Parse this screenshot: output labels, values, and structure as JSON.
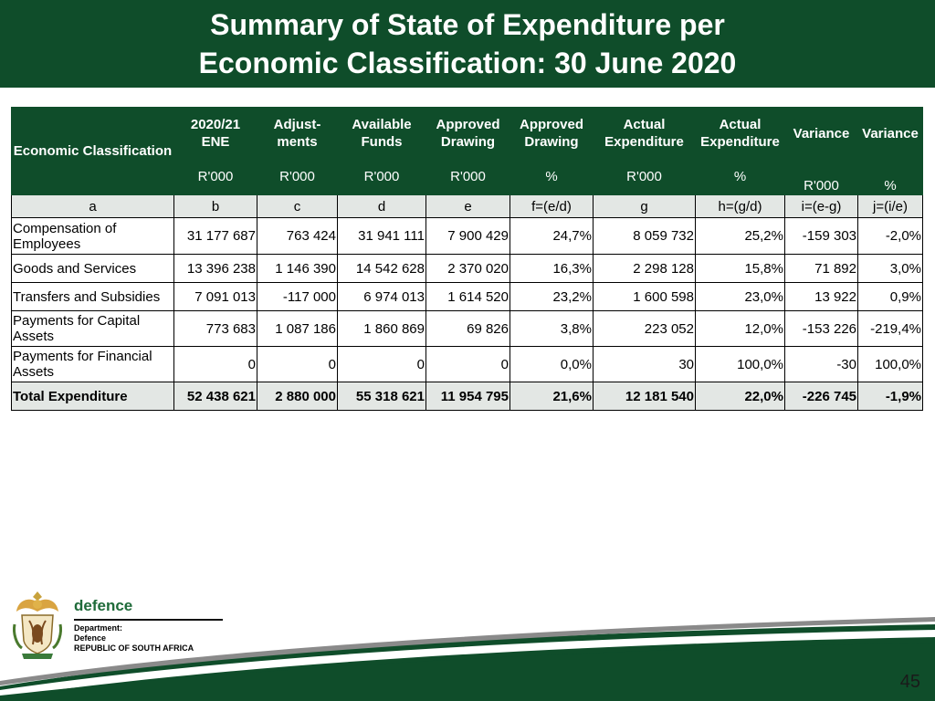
{
  "title": {
    "line1": "Summary of State of Expenditure per",
    "line2": "Economic Classification:  30 June 2020"
  },
  "table": {
    "headers": [
      {
        "label": "Economic Classification",
        "unit": ""
      },
      {
        "label": "2020/21 ENE",
        "unit": "R'000"
      },
      {
        "label": "Adjust-ments",
        "unit": "R'000"
      },
      {
        "label": "Available Funds",
        "unit": "R'000"
      },
      {
        "label": "Approved Drawing",
        "unit": "R'000"
      },
      {
        "label": "Approved Drawing",
        "unit": "%"
      },
      {
        "label": "Actual Expenditure",
        "unit": "R'000"
      },
      {
        "label": "Actual Expenditure",
        "unit": "%"
      },
      {
        "label": "Variance",
        "unit": "R'000"
      },
      {
        "label": "Variance",
        "unit": "%"
      }
    ],
    "codes": [
      "a",
      "b",
      "c",
      "d",
      "e",
      "f=(e/d)",
      "g",
      "h=(g/d)",
      "i=(e-g)",
      "j=(i/e)"
    ],
    "rows": [
      [
        "Compensation of Employees",
        "31 177 687",
        "763 424",
        "31 941 111",
        "7 900 429",
        "24,7%",
        "8 059 732",
        "25,2%",
        "-159 303",
        "-2,0%"
      ],
      [
        "Goods and Services",
        "13 396 238",
        "1 146 390",
        "14 542 628",
        "2 370 020",
        "16,3%",
        "2 298 128",
        "15,8%",
        "71 892",
        "3,0%"
      ],
      [
        "Transfers and Subsidies",
        "7 091 013",
        "-117 000",
        "6 974 013",
        "1 614 520",
        "23,2%",
        "1 600 598",
        "23,0%",
        "13 922",
        "0,9%"
      ],
      [
        "Payments for Capital Assets",
        "773 683",
        "1 087 186",
        "1 860 869",
        "69 826",
        "3,8%",
        "223 052",
        "12,0%",
        "-153 226",
        "-219,4%"
      ],
      [
        "Payments for Financial Assets",
        "0",
        "0",
        "0",
        "0",
        "0,0%",
        "30",
        "100,0%",
        "-30",
        "100,0%"
      ]
    ],
    "total": [
      "Total Expenditure",
      "52 438 621",
      "2 880 000",
      "55 318 621",
      "11 954 795",
      "21,6%",
      "12 181 540",
      "22,0%",
      "-226 745",
      "-1,9%"
    ]
  },
  "footer": {
    "dept_name": "defence",
    "dept_lines": [
      "Department:",
      "Defence",
      "REPUBLIC OF SOUTH AFRICA"
    ],
    "logo_icon": "coat-of-arms-icon",
    "page_number": "45"
  },
  "colors": {
    "brand_green": "#0f4d2a",
    "light_grey": "#e3e7e4",
    "logo_text_green": "#1f6b3a"
  }
}
